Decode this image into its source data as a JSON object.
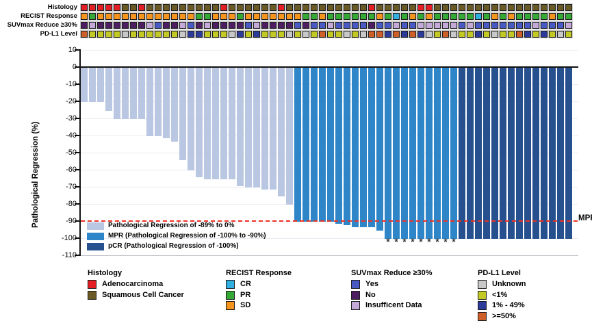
{
  "figure": {
    "mpr_line_label": "MPR"
  },
  "categories": {
    "histology": {
      "A": {
        "label": "Adenocarcinoma",
        "color": "#E31E24"
      },
      "S": {
        "label": "Squamous Cell Cancer",
        "color": "#6A5A25"
      }
    },
    "recist": {
      "CR": {
        "label": "CR",
        "color": "#30AFE0"
      },
      "PR": {
        "label": "PR",
        "color": "#35A935"
      },
      "SD": {
        "label": "SD",
        "color": "#F7941D"
      }
    },
    "suvmax": {
      "Yes": {
        "label": "Yes",
        "color": "#4A5AC4"
      },
      "No": {
        "label": "No",
        "color": "#4E1E63"
      },
      "ID": {
        "label": "Insufficent Data",
        "color": "#C3AAD8"
      }
    },
    "pdl1": {
      "U": {
        "label": "Unknown",
        "color": "#C8C8C8"
      },
      "LT1": {
        "label": "<1%",
        "color": "#C2C922"
      },
      "MID": {
        "label": "1% - 49%",
        "color": "#2C3A99"
      },
      "GE50": {
        "label": ">=50%",
        "color": "#CE5F28"
      }
    }
  },
  "annotation_tracks": {
    "rows": [
      {
        "label": "Histology",
        "category": "histology",
        "cells": [
          "A",
          "A",
          "A",
          "A",
          "A",
          "S",
          "S",
          "A",
          "S",
          "S",
          "S",
          "S",
          "S",
          "S",
          "S",
          "S",
          "S",
          "A",
          "S",
          "S",
          "S",
          "S",
          "S",
          "S",
          "A",
          "S",
          "S",
          "S",
          "S",
          "S",
          "S",
          "S",
          "S",
          "S",
          "S",
          "A",
          "S",
          "S",
          "S",
          "S",
          "S",
          "A",
          "A",
          "S",
          "S",
          "S",
          "S",
          "S",
          "S",
          "S",
          "S",
          "S",
          "S",
          "S",
          "S",
          "S",
          "S",
          "S",
          "S",
          "S"
        ]
      },
      {
        "label": "RECIST Response",
        "category": "recist",
        "cells": [
          "SD",
          "PR",
          "SD",
          "SD",
          "SD",
          "SD",
          "SD",
          "SD",
          "SD",
          "SD",
          "SD",
          "SD",
          "SD",
          "SD",
          "PR",
          "PR",
          "SD",
          "SD",
          "SD",
          "PR",
          "SD",
          "SD",
          "SD",
          "SD",
          "SD",
          "SD",
          "SD",
          "PR",
          "PR",
          "SD",
          "PR",
          "PR",
          "PR",
          "PR",
          "PR",
          "PR",
          "SD",
          "PR",
          "CR",
          "PR",
          "SD",
          "PR",
          "SD",
          "PR",
          "PR",
          "PR",
          "PR",
          "PR",
          "CR",
          "PR",
          "SD",
          "PR",
          "SD",
          "PR",
          "PR",
          "PR",
          "PR",
          "SD",
          "PR",
          "PR"
        ]
      },
      {
        "label": "SUVmax Reduce ≥30%",
        "category": "suvmax",
        "cells": [
          "No",
          "ID",
          "No",
          "No",
          "No",
          "No",
          "No",
          "No",
          "ID",
          "Yes",
          "No",
          "No",
          "ID",
          "Yes",
          "No",
          "ID",
          "No",
          "No",
          "No",
          "No",
          "Yes",
          "ID",
          "No",
          "No",
          "No",
          "No",
          "Yes",
          "No",
          "Yes",
          "Yes",
          "ID",
          "Yes",
          "Yes",
          "Yes",
          "Yes",
          "No",
          "Yes",
          "Yes",
          "ID",
          "Yes",
          "Yes",
          "ID",
          "ID",
          "ID",
          "ID",
          "ID",
          "Yes",
          "ID",
          "Yes",
          "Yes",
          "Yes",
          "Yes",
          "Yes",
          "Yes",
          "Yes",
          "ID",
          "Yes",
          "Yes",
          "Yes",
          "ID"
        ]
      },
      {
        "label": "PD-L1 Level",
        "category": "pdl1",
        "cells": [
          "GE50",
          "LT1",
          "LT1",
          "LT1",
          "LT1",
          "U",
          "LT1",
          "LT1",
          "LT1",
          "LT1",
          "LT1",
          "LT1",
          "U",
          "MID",
          "MID",
          "LT1",
          "LT1",
          "LT1",
          "U",
          "MID",
          "LT1",
          "MID",
          "LT1",
          "LT1",
          "LT1",
          "U",
          "LT1",
          "U",
          "LT1",
          "GE50",
          "LT1",
          "LT1",
          "U",
          "LT1",
          "U",
          "GE50",
          "GE50",
          "MID",
          "GE50",
          "MID",
          "GE50",
          "MID",
          "U",
          "LT1",
          "GE50",
          "U",
          "LT1",
          "LT1",
          "MID",
          "LT1",
          "U",
          "LT1",
          "LT1",
          "GE50",
          "MID",
          "LT1",
          "MID",
          "LT1",
          "U",
          "LT1"
        ]
      }
    ]
  },
  "chart_data": {
    "type": "bar",
    "title": "",
    "xlabel": "",
    "ylabel": "Pathological Regression (%)",
    "ylim": [
      -110,
      10
    ],
    "yticks": [
      10,
      0,
      -10,
      -20,
      -30,
      -40,
      -50,
      -60,
      -70,
      -80,
      -90,
      -100,
      -110
    ],
    "grid": true,
    "n_bars": 60,
    "values": [
      -20,
      -20,
      -20,
      -25,
      -30,
      -30,
      -30,
      -30,
      -40,
      -40,
      -41,
      -43,
      -54,
      -60,
      -64,
      -65,
      -65,
      -65,
      -65,
      -69,
      -70,
      -70,
      -71,
      -71,
      -75,
      -80,
      -90,
      -90,
      -90,
      -90,
      -90,
      -91,
      -92,
      -93,
      -93,
      -93,
      -95,
      -100,
      -100,
      -100,
      -100,
      -100,
      -100,
      -100,
      -100,
      -100,
      -100,
      -100,
      -100,
      -100,
      -100,
      -100,
      -100,
      -100,
      -100,
      -100,
      -100,
      -100,
      -100,
      -100
    ],
    "group_ranges": {
      "light_end_index": 25,
      "mpr_end_index": 45
    },
    "bar_colors": {
      "light": "#B9C7E3",
      "mpr": "#2E86C8",
      "pcr": "#27518E"
    },
    "mpr_threshold": -90,
    "mpr_line_color": "#EE3124",
    "asterisk_indices": [
      37,
      38,
      39,
      40,
      41,
      42,
      43,
      44,
      45
    ],
    "asterisk_symbol": "*"
  },
  "plot_legend": {
    "items": [
      {
        "color_key": "light",
        "label": "Pathological Regression of -89% to 0%"
      },
      {
        "color_key": "mpr",
        "label": "MPR (Pathological Regression of -100% to -90%)"
      },
      {
        "color_key": "pcr",
        "label": "pCR (Pathological Regression of -100%)"
      }
    ]
  },
  "bottom_legend": {
    "groups": [
      {
        "title": "Histology",
        "category": "histology",
        "order": [
          "A",
          "S"
        ]
      },
      {
        "title": "RECIST Response",
        "category": "recist",
        "order": [
          "CR",
          "PR",
          "SD"
        ]
      },
      {
        "title": "SUVmax Reduce ≥30%",
        "category": "suvmax",
        "order": [
          "Yes",
          "No",
          "ID"
        ]
      },
      {
        "title": "PD-L1 Level",
        "category": "pdl1",
        "order": [
          "U",
          "LT1",
          "MID",
          "GE50"
        ]
      }
    ]
  }
}
